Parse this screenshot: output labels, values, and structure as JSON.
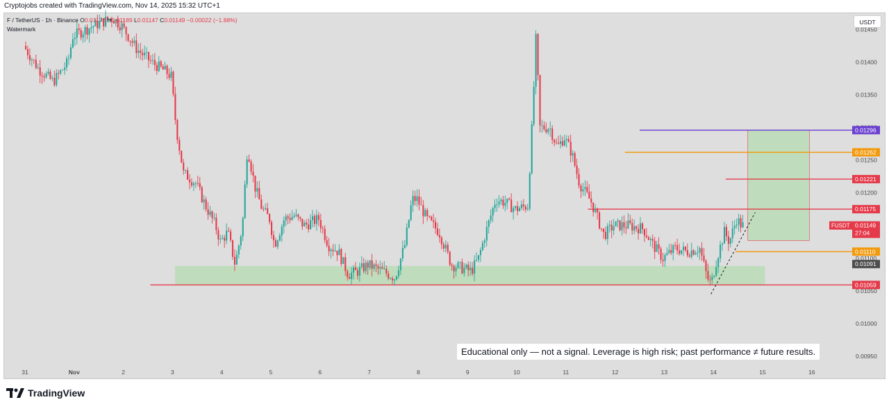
{
  "header": {
    "caption": "Cryptojobs created with TradingView.com, Nov 14, 2025 15:32 UTC+1"
  },
  "legend": {
    "symbol": "F / TetherUS · 1h · Binance",
    "open_label": "O",
    "open": "0.01172",
    "high_label": "H",
    "high": "0.01189",
    "low_label": "L",
    "low": "0.01147",
    "close_label": "C",
    "close": "0.01149",
    "change": "−0.00022 (−1.88%)",
    "watermark": "Watermark"
  },
  "currency_label": "USDT",
  "notice": "Educational only — not a signal. Leverage is high risk; past performance ≠ future results.",
  "brand": {
    "name": "TradingView"
  },
  "colors": {
    "up": "#26a69a",
    "down": "#e53a4a",
    "level_red": "#e53a4a",
    "level_orange": "#f29a0e",
    "level_purple": "#6a3fd1",
    "zone_green": "#b7dcb3",
    "current_label": "#e53a4a",
    "grey_label": "#4d4d4d"
  },
  "chart_data": {
    "type": "candlestick",
    "symbol": "FUSDT",
    "timeframe": "1h",
    "exchange": "Binance",
    "x_ticks": [
      "31",
      "Nov",
      "2",
      "3",
      "4",
      "5",
      "6",
      "7",
      "8",
      "9",
      "10",
      "11",
      "12",
      "13",
      "14",
      "15",
      "16"
    ],
    "y_ticks": [
      "0.01450",
      "0.01400",
      "0.01350",
      "0.01300",
      "0.01250",
      "0.01200",
      "0.01150",
      "0.01100",
      "0.01050",
      "0.01000",
      "0.00950"
    ],
    "ylim": [
      0.00935,
      0.01475
    ],
    "x_range": [
      "31",
      "16"
    ],
    "price_labels": [
      {
        "text": "0.01296",
        "color": "#6a3fd1"
      },
      {
        "text": "0.01262",
        "color": "#f29a0e"
      },
      {
        "text": "0.01221",
        "color": "#e53a4a"
      },
      {
        "text": "0.01175",
        "color": "#e53a4a"
      },
      {
        "text": "FUSDT",
        "text2": "0.01149",
        "text3": "27:04",
        "color": "#e53a4a"
      },
      {
        "text": "0.01110",
        "color": "#f29a0e"
      },
      {
        "text": "0.01091",
        "color": "#4d4d4d"
      },
      {
        "text": "0.01059",
        "color": "#e53a4a"
      }
    ],
    "horizontal_levels": [
      {
        "price": 0.01296,
        "color": "#6a3fd1",
        "from": "12.5",
        "to": "16.5"
      },
      {
        "price": 0.01262,
        "color": "#f29a0e",
        "from": "12.2",
        "to": "16.5"
      },
      {
        "price": 0.01221,
        "color": "#e53a4a",
        "from": "14.25",
        "to": "16.5"
      },
      {
        "price": 0.01175,
        "color": "#e53a4a",
        "from": "11.45",
        "to": "16.5"
      },
      {
        "price": 0.0111,
        "color": "#f29a0e",
        "from": "14.45",
        "to": "16.5"
      },
      {
        "price": 0.01059,
        "color": "#e53a4a",
        "from": "2.55",
        "to": "16.5"
      }
    ],
    "zones": [
      {
        "name": "support-zone",
        "from": "3.05",
        "to": "15.05",
        "low": 0.01059,
        "high": 0.01088
      },
      {
        "name": "target-zone",
        "from": "14.7",
        "to": "15.95",
        "low": 0.01127,
        "high": 0.01296
      }
    ],
    "trendline": {
      "x1": "13.95",
      "y1": 0.01045,
      "x2": "14.85",
      "y2": 0.0117
    },
    "price_path": [
      [
        "31",
        0.01425
      ],
      [
        "31.3",
        0.0139
      ],
      [
        "31.6",
        0.0137
      ],
      [
        "31.9",
        0.014
      ],
      [
        "Nov",
        0.0144
      ],
      [
        "Nov.4",
        0.01455
      ],
      [
        "Nov.8",
        0.01468
      ],
      [
        "2",
        0.01455
      ],
      [
        "2.3",
        0.0142
      ],
      [
        "2.6",
        0.014
      ],
      [
        "2.9",
        0.01385
      ],
      [
        "3",
        0.01378
      ],
      [
        "3.1",
        0.013
      ],
      [
        "3.25",
        0.0123
      ],
      [
        "3.5",
        0.01215
      ],
      [
        "3.7",
        0.0118
      ],
      [
        "3.9",
        0.0115
      ],
      [
        "4",
        0.01125
      ],
      [
        "4.15",
        0.0114
      ],
      [
        "4.3",
        0.0109
      ],
      [
        "4.45",
        0.0115
      ],
      [
        "4.55",
        0.0127
      ],
      [
        "4.7",
        0.0121
      ],
      [
        "4.85",
        0.01175
      ],
      [
        "5",
        0.0116
      ],
      [
        "5.1",
        0.0112
      ],
      [
        "5.3",
        0.0116
      ],
      [
        "5.5",
        0.01165
      ],
      [
        "5.7",
        0.0115
      ],
      [
        "6",
        0.0116
      ],
      [
        "6.2",
        0.0112
      ],
      [
        "6.4",
        0.0111
      ],
      [
        "6.6",
        0.01075
      ],
      [
        "6.8",
        0.0108
      ],
      [
        "7",
        0.0109
      ],
      [
        "7.3",
        0.0108
      ],
      [
        "7.55",
        0.0107
      ],
      [
        "7.75",
        0.0112
      ],
      [
        "7.9",
        0.0119
      ],
      [
        "8",
        0.0119
      ],
      [
        "8.2",
        0.0116
      ],
      [
        "8.45",
        0.0114
      ],
      [
        "8.7",
        0.0109
      ],
      [
        "8.9",
        0.01085
      ],
      [
        "9.1",
        0.0108
      ],
      [
        "9.25",
        0.011
      ],
      [
        "9.4",
        0.0114
      ],
      [
        "9.6",
        0.0119
      ],
      [
        "9.8",
        0.01185
      ],
      [
        "10",
        0.01175
      ],
      [
        "10.25",
        0.0118
      ],
      [
        "10.35",
        0.0132
      ],
      [
        "10.42",
        0.0144
      ],
      [
        "10.5",
        0.013
      ],
      [
        "10.7",
        0.013
      ],
      [
        "10.85",
        0.0127
      ],
      [
        "11",
        0.01285
      ],
      [
        "11.15",
        0.0126
      ],
      [
        "11.3",
        0.01215
      ],
      [
        "11.55",
        0.01185
      ],
      [
        "11.8",
        0.01135
      ],
      [
        "12",
        0.0115
      ],
      [
        "12.3",
        0.0115
      ],
      [
        "12.6",
        0.01145
      ],
      [
        "12.8",
        0.0112
      ],
      [
        "13",
        0.011
      ],
      [
        "13.25",
        0.01115
      ],
      [
        "13.5",
        0.0111
      ],
      [
        "13.75",
        0.01115
      ],
      [
        "13.9",
        0.0107
      ],
      [
        "13.98",
        0.0106
      ],
      [
        "14.1",
        0.011
      ],
      [
        "14.25",
        0.0114
      ],
      [
        "14.35",
        0.01125
      ],
      [
        "14.5",
        0.0116
      ],
      [
        "14.6",
        0.0115
      ]
    ]
  }
}
